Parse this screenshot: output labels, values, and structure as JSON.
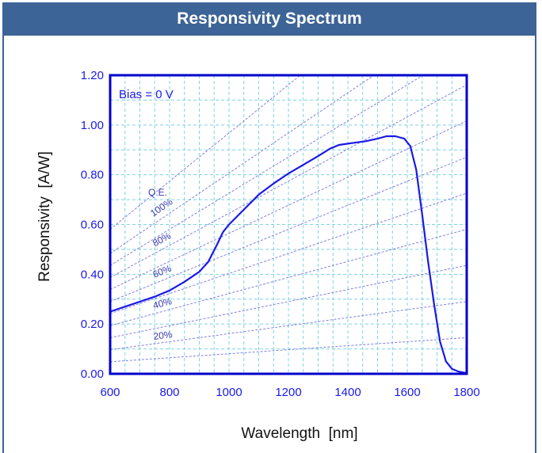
{
  "header": {
    "title": "Responsivity Spectrum"
  },
  "chart_data": {
    "type": "line",
    "title": "Responsivity Spectrum",
    "xlabel": "Wavelength  [nm]",
    "ylabel": "Responsivity  [A/W]",
    "xlim": [
      600,
      1800
    ],
    "ylim": [
      0,
      1.2
    ],
    "xticks": [
      600,
      800,
      1000,
      1200,
      1400,
      1600,
      1800
    ],
    "xtick_labels": [
      "600",
      "800",
      "1000",
      "1200",
      "1400",
      "1600",
      "1800"
    ],
    "yticks": [
      0,
      0.2,
      0.4,
      0.6,
      0.8,
      1.0,
      1.2
    ],
    "ytick_labels": [
      "0.00",
      "0.20",
      "0.40",
      "0.60",
      "0.80",
      "1.00",
      "1.20"
    ],
    "grid": true,
    "annotation": "Bias = 0 V",
    "qe_label": "Q.E.",
    "colors": {
      "curve": "#1a1ae6",
      "qe_lines": "#8080e0",
      "grid": "#7fd4e0",
      "axis": "#0000cc",
      "banner": "#3d6496"
    },
    "series": [
      {
        "x": [
          600,
          650,
          700,
          750,
          800,
          850,
          900,
          930,
          960,
          980,
          1000,
          1050,
          1100,
          1150,
          1200,
          1250,
          1300,
          1340,
          1370,
          1400,
          1430,
          1460,
          1500,
          1530,
          1560,
          1590,
          1610,
          1630,
          1650,
          1670,
          1690,
          1710,
          1730,
          1750,
          1770,
          1790,
          1800
        ],
        "y": [
          0.25,
          0.27,
          0.29,
          0.31,
          0.335,
          0.37,
          0.41,
          0.45,
          0.52,
          0.57,
          0.6,
          0.66,
          0.72,
          0.765,
          0.805,
          0.84,
          0.875,
          0.905,
          0.92,
          0.925,
          0.93,
          0.935,
          0.945,
          0.955,
          0.955,
          0.945,
          0.915,
          0.82,
          0.64,
          0.45,
          0.28,
          0.13,
          0.05,
          0.02,
          0.01,
          0.005,
          0.003
        ]
      }
    ],
    "qe_lines": [
      {
        "label": "",
        "qe": 1.2
      },
      {
        "label": "100%",
        "qe": 1.0
      },
      {
        "label": "",
        "qe": 0.9
      },
      {
        "label": "80%",
        "qe": 0.8
      },
      {
        "label": "",
        "qe": 0.7
      },
      {
        "label": "60%",
        "qe": 0.6
      },
      {
        "label": "",
        "qe": 0.5
      },
      {
        "label": "40%",
        "qe": 0.4
      },
      {
        "label": "",
        "qe": 0.3
      },
      {
        "label": "20%",
        "qe": 0.2
      },
      {
        "label": "",
        "qe": 0.1
      }
    ]
  }
}
